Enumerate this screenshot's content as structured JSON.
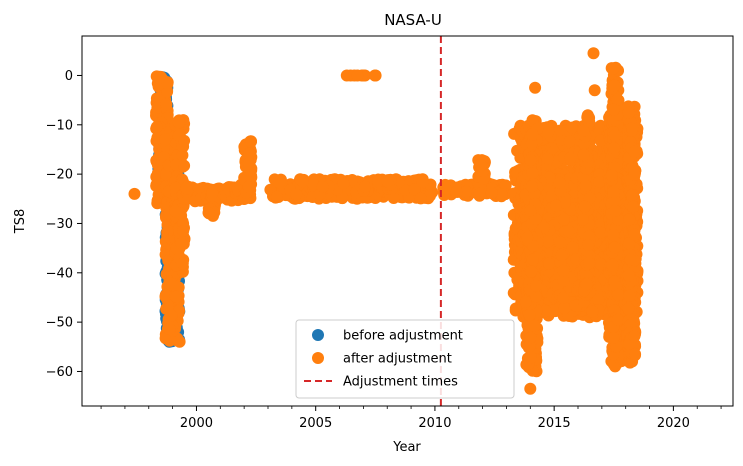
{
  "chart_data": {
    "type": "scatter",
    "title": "NASA-U",
    "xlabel": "Year",
    "ylabel": "TS8",
    "xlim": [
      1995.2,
      2022.5
    ],
    "ylim": [
      -67,
      8
    ],
    "xticks": [
      2000,
      2005,
      2010,
      2015,
      2020
    ],
    "yticks": [
      0,
      -10,
      -20,
      -30,
      -40,
      -50,
      -60
    ],
    "grid": false,
    "legend_position": "lower-center",
    "colors": {
      "before": "#1f77b4",
      "after": "#ff7f0e",
      "adjustment": "#d62728"
    },
    "series": [
      {
        "name": "before adjustment",
        "marker": "circle",
        "color": "#1f77b4",
        "ranges": [
          {
            "x": [
              1998.4,
              1998.8
            ],
            "y": [
              -26,
              0
            ]
          },
          {
            "x": [
              1998.7,
              1999.3
            ],
            "y": [
              -54,
              -18
            ]
          }
        ]
      },
      {
        "name": "after adjustment",
        "marker": "circle",
        "color": "#ff7f0e",
        "points": [
          {
            "x": 1997.4,
            "y": -24
          },
          {
            "x": 2014.2,
            "y": -2.5
          },
          {
            "x": 2016.65,
            "y": 4.5
          },
          {
            "x": 2016.7,
            "y": -3
          },
          {
            "x": 2014.0,
            "y": -63.5
          }
        ],
        "ranges": [
          {
            "x": [
              1998.3,
              1998.8
            ],
            "y": [
              -26,
              0
            ]
          },
          {
            "x": [
              1998.7,
              1999.3
            ],
            "y": [
              -54,
              -18
            ]
          },
          {
            "x": [
              1999.1,
              1999.5
            ],
            "y": [
              -40,
              -9
            ]
          },
          {
            "x": [
              1999.4,
              2002.0
            ],
            "y": [
              -25.5,
              -22.5
            ]
          },
          {
            "x": [
              2000.5,
              2000.8
            ],
            "y": [
              -28.5,
              -23
            ]
          },
          {
            "x": [
              2001.6,
              2001.9
            ],
            "y": [
              -24,
              -22
            ]
          },
          {
            "x": [
              2002.0,
              2002.3
            ],
            "y": [
              -25,
              -13
            ]
          },
          {
            "x": [
              2003.1,
              2009.9
            ],
            "y": [
              -25,
              -21
            ]
          },
          {
            "x": [
              2006.3,
              2007.6
            ],
            "y": [
              0,
              0
            ]
          },
          {
            "x": [
              2008.0,
              2008.2
            ],
            "y": [
              -23,
              -21
            ]
          },
          {
            "x": [
              2010.3,
              2013.0
            ],
            "y": [
              -24.5,
              -22
            ]
          },
          {
            "x": [
              2011.8,
              2012.1
            ],
            "y": [
              -21,
              -17
            ]
          },
          {
            "x": [
              2013.3,
              2018.5
            ],
            "y": [
              -49,
              -10
            ]
          },
          {
            "x": [
              2013.6,
              2018.4
            ],
            "y": [
              -48,
              -20
            ]
          },
          {
            "x": [
              2013.8,
              2014.3
            ],
            "y": [
              -60,
              -9
            ]
          },
          {
            "x": [
              2016.2,
              2016.5
            ],
            "y": [
              -45,
              -8
            ]
          },
          {
            "x": [
              2017.3,
              2017.9
            ],
            "y": [
              -58,
              -8
            ]
          },
          {
            "x": [
              2017.4,
              2017.7
            ],
            "y": [
              -59,
              2
            ]
          },
          {
            "x": [
              2018.1,
              2018.4
            ],
            "y": [
              -59,
              -6
            ]
          }
        ]
      }
    ],
    "adjustment_times": [
      2010.25
    ]
  }
}
